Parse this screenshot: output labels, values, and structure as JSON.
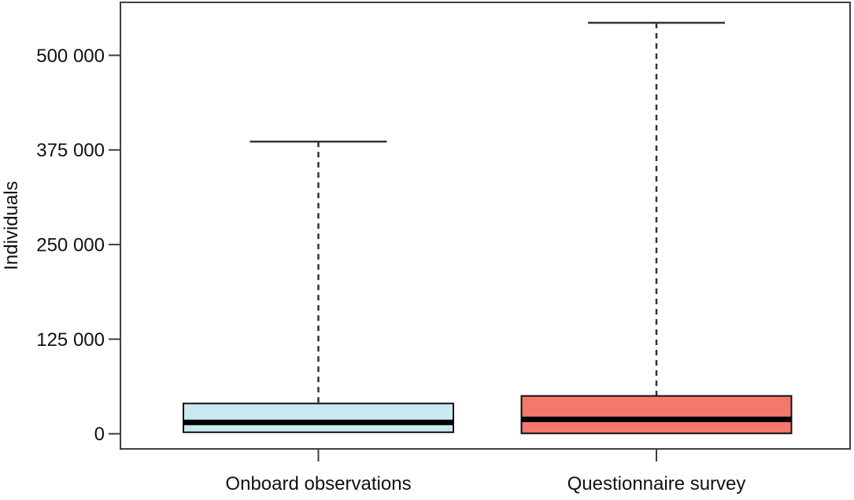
{
  "chart_data": {
    "type": "boxplot",
    "title": "",
    "xlabel": "",
    "ylabel": "Individuals",
    "categories": [
      "Onboard observations",
      "Questionnaire survey"
    ],
    "ylim": [
      -20000,
      570000
    ],
    "yticks": [
      {
        "value": 0,
        "label": "0"
      },
      {
        "value": 125000,
        "label": "125 000"
      },
      {
        "value": 250000,
        "label": "250 000"
      },
      {
        "value": 375000,
        "label": "375 000"
      },
      {
        "value": 500000,
        "label": "500 000"
      }
    ],
    "grid": false,
    "legend": "none",
    "series": [
      {
        "name": "Onboard observations",
        "box_fill": "#C9E9F2",
        "q1": 2000,
        "median": 15000,
        "q3": 40000,
        "whisker_low": 2000,
        "whisker_high": 386000
      },
      {
        "name": "Questionnaire survey",
        "box_fill": "#F4786B",
        "q1": 500,
        "median": 19000,
        "q3": 50000,
        "whisker_low": 500,
        "whisker_high": 543000
      }
    ]
  },
  "colors": {
    "axis": "#404040",
    "box_border": "#111111",
    "median": "#000000",
    "whisker": "#333333",
    "text": "#111111",
    "background": "#ffffff"
  }
}
